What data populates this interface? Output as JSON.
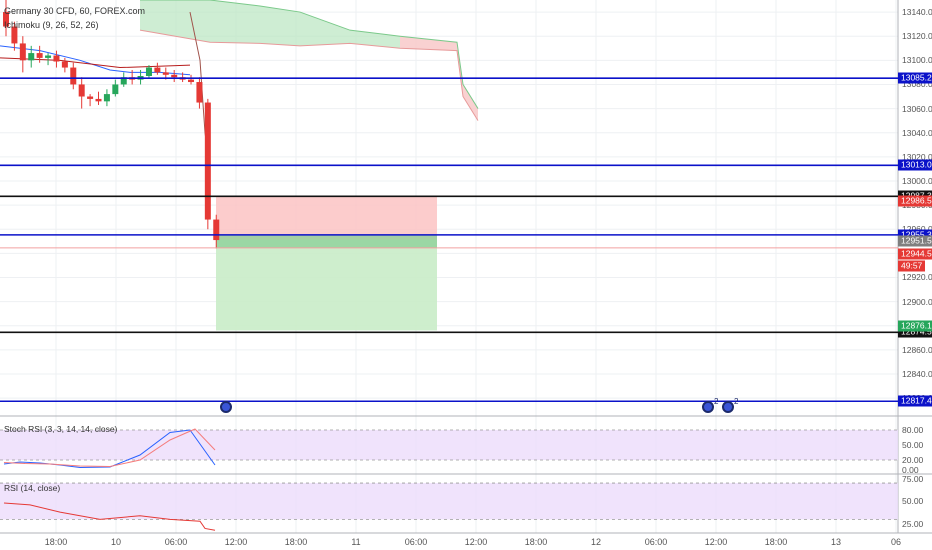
{
  "header": {
    "symbol_title": "Germany 30 CFD, 60, FOREX.com",
    "indicator_label": "Ichimoku (9, 26, 52, 26)"
  },
  "price_axis": {
    "ticks": [
      "13140.0",
      "13120.0",
      "13100.0",
      "13080.0",
      "13060.0",
      "13040.0",
      "13020.0",
      "13000.0",
      "12980.0",
      "12960.0",
      "12940.0",
      "12920.0",
      "12900.0",
      "12880.0",
      "12860.0",
      "12840.0",
      "12820.0"
    ]
  },
  "levels": [
    {
      "label": "13085.2",
      "color": "#0b12c9"
    },
    {
      "label": "13013.0",
      "color": "#0b12c9"
    },
    {
      "label": "12987.3",
      "color": "#111111"
    },
    {
      "label": "12955.3",
      "color": "#0b12c9"
    },
    {
      "label": "12874.5",
      "color": "#111111"
    },
    {
      "label": "12817.4",
      "color": "#0b12c9"
    }
  ],
  "price_tags": [
    {
      "label": "12986.5",
      "color": "#e53935"
    },
    {
      "label": "12951.5",
      "color": "#7f7f7f"
    },
    {
      "label": "12944.5",
      "color": "#e53935"
    },
    {
      "label": "49:57",
      "color": "#e53935"
    },
    {
      "label": "12876.1",
      "color": "#26a65b"
    }
  ],
  "time_axis": {
    "ticks": [
      "18:00",
      "10",
      "06:00",
      "12:00",
      "18:00",
      "11",
      "06:00",
      "12:00",
      "18:00",
      "12",
      "06:00",
      "12:00",
      "18:00",
      "13",
      "06"
    ]
  },
  "stoch_rsi": {
    "title": "Stoch RSI (3, 3, 14, 14, close)",
    "ticks": [
      "80.00",
      "50.00",
      "20.00",
      "0.00"
    ]
  },
  "rsi": {
    "title": "RSI (14, close)",
    "ticks": [
      "75.00",
      "50.00",
      "25.00"
    ]
  },
  "events": [
    {
      "name": "event-marker-1",
      "count": ""
    },
    {
      "name": "event-marker-2",
      "count": "2"
    },
    {
      "name": "event-marker-3",
      "count": "2"
    }
  ],
  "colors": {
    "bull": "#26a65b",
    "bear": "#e53935",
    "level_blue": "#0b12c9",
    "cloud_green": "#b9e6c0",
    "cloud_red": "#f7c6c6",
    "stop_zone": "#fbc3c3",
    "target_zone": "#c9ecc8"
  },
  "chart_data": {
    "type": "candlestick",
    "title": "Germany 30 CFD, 60, FOREX.com",
    "ylim": [
      12806,
      13150
    ],
    "candles": [
      {
        "o": 13140,
        "h": 13150,
        "l": 13120,
        "c": 13128
      },
      {
        "o": 13128,
        "h": 13132,
        "l": 13108,
        "c": 13114
      },
      {
        "o": 13114,
        "h": 13120,
        "l": 13090,
        "c": 13100
      },
      {
        "o": 13100,
        "h": 13112,
        "l": 13094,
        "c": 13106
      },
      {
        "o": 13106,
        "h": 13112,
        "l": 13098,
        "c": 13102
      },
      {
        "o": 13102,
        "h": 13106,
        "l": 13096,
        "c": 13104
      },
      {
        "o": 13104,
        "h": 13108,
        "l": 13094,
        "c": 13099
      },
      {
        "o": 13099,
        "h": 13102,
        "l": 13090,
        "c": 13094
      },
      {
        "o": 13094,
        "h": 13098,
        "l": 13076,
        "c": 13080
      },
      {
        "o": 13080,
        "h": 13086,
        "l": 13060,
        "c": 13070
      },
      {
        "o": 13070,
        "h": 13072,
        "l": 13062,
        "c": 13068
      },
      {
        "o": 13068,
        "h": 13074,
        "l": 13063,
        "c": 13066
      },
      {
        "o": 13066,
        "h": 13076,
        "l": 13062,
        "c": 13072
      },
      {
        "o": 13072,
        "h": 13084,
        "l": 13070,
        "c": 13080
      },
      {
        "o": 13080,
        "h": 13090,
        "l": 13078,
        "c": 13086
      },
      {
        "o": 13086,
        "h": 13092,
        "l": 13080,
        "c": 13084
      },
      {
        "o": 13084,
        "h": 13092,
        "l": 13080,
        "c": 13087
      },
      {
        "o": 13087,
        "h": 13096,
        "l": 13085,
        "c": 13094
      },
      {
        "o": 13094,
        "h": 13098,
        "l": 13088,
        "c": 13090
      },
      {
        "o": 13090,
        "h": 13094,
        "l": 13084,
        "c": 13088
      },
      {
        "o": 13088,
        "h": 13092,
        "l": 13082,
        "c": 13086
      },
      {
        "o": 13086,
        "h": 13090,
        "l": 13082,
        "c": 13084
      },
      {
        "o": 13084,
        "h": 13088,
        "l": 13080,
        "c": 13082
      },
      {
        "o": 13082,
        "h": 13086,
        "l": 13060,
        "c": 13065
      },
      {
        "o": 13065,
        "h": 13068,
        "l": 12960,
        "c": 12968
      },
      {
        "o": 12968,
        "h": 12972,
        "l": 12944,
        "c": 12951
      }
    ],
    "position": {
      "entry": 12951.5,
      "stop": 12987.3,
      "target": 12876.1
    }
  }
}
